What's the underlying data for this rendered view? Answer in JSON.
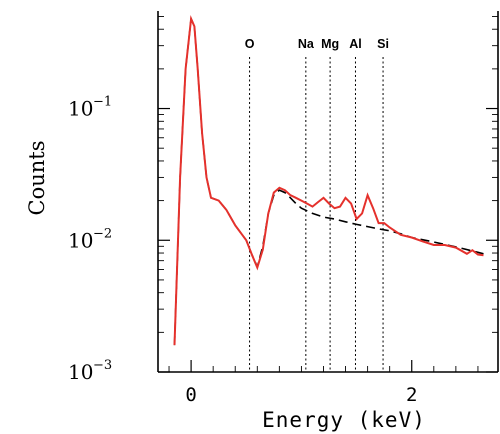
{
  "chart_data": {
    "type": "line",
    "title": "",
    "xlabel": "Energy (keV)",
    "ylabel": "Counts",
    "yscale": "log",
    "xlim": [
      -0.3,
      2.8
    ],
    "ylim": [
      0.001,
      0.55
    ],
    "x_ticks": [
      {
        "value": 0,
        "label": "0"
      },
      {
        "value": 2,
        "label": "2"
      }
    ],
    "y_ticks": [
      {
        "value": 0.001,
        "base": "10",
        "exp": "−3"
      },
      {
        "value": 0.01,
        "base": "10",
        "exp": "−2"
      },
      {
        "value": 0.1,
        "base": "10",
        "exp": "−1"
      }
    ],
    "element_lines": [
      {
        "label": "O",
        "energy": 0.53
      },
      {
        "label": "Na",
        "energy": 1.04
      },
      {
        "label": "Mg",
        "energy": 1.26
      },
      {
        "label": "Al",
        "energy": 1.49
      },
      {
        "label": "Si",
        "energy": 1.74
      }
    ],
    "series": [
      {
        "color": "#e5312c",
        "style": "solid",
        "x": [
          -0.15,
          -0.1,
          -0.05,
          0.0,
          0.03,
          0.06,
          0.1,
          0.14,
          0.18,
          0.25,
          0.32,
          0.4,
          0.5,
          0.55,
          0.6,
          0.65,
          0.7,
          0.75,
          0.8,
          0.85,
          0.9,
          0.95,
          1.0,
          1.05,
          1.1,
          1.15,
          1.2,
          1.25,
          1.3,
          1.35,
          1.4,
          1.45,
          1.5,
          1.55,
          1.6,
          1.65,
          1.7,
          1.75,
          1.8,
          1.9,
          2.0,
          2.1,
          2.2,
          2.3,
          2.4,
          2.5,
          2.55,
          2.6,
          2.65
        ],
        "y": [
          0.0016,
          0.03,
          0.2,
          0.48,
          0.42,
          0.2,
          0.065,
          0.03,
          0.021,
          0.02,
          0.017,
          0.013,
          0.01,
          0.0078,
          0.0062,
          0.0085,
          0.016,
          0.023,
          0.025,
          0.024,
          0.022,
          0.021,
          0.02,
          0.019,
          0.018,
          0.0195,
          0.021,
          0.019,
          0.0175,
          0.018,
          0.021,
          0.019,
          0.0145,
          0.016,
          0.022,
          0.0175,
          0.0135,
          0.0135,
          0.0125,
          0.011,
          0.0105,
          0.0098,
          0.0092,
          0.0092,
          0.0088,
          0.0079,
          0.0084,
          0.0078,
          0.0077
        ]
      },
      {
        "color": "#000000",
        "style": "dashed",
        "x": [
          -0.15,
          -0.1,
          -0.05,
          0.0,
          0.03,
          0.06,
          0.1,
          0.14,
          0.18,
          0.25,
          0.32,
          0.4,
          0.5,
          0.55,
          0.6,
          0.65,
          0.7,
          0.75,
          0.8,
          0.85,
          0.9,
          0.95,
          1.0,
          1.1,
          1.2,
          1.3,
          1.4,
          1.5,
          1.6,
          1.7,
          1.8,
          1.9,
          2.0,
          2.2,
          2.4,
          2.6,
          2.65
        ],
        "y": [
          0.0016,
          0.03,
          0.2,
          0.48,
          0.42,
          0.2,
          0.065,
          0.03,
          0.021,
          0.02,
          0.017,
          0.013,
          0.01,
          0.0078,
          0.0063,
          0.009,
          0.016,
          0.022,
          0.024,
          0.023,
          0.021,
          0.019,
          0.0175,
          0.016,
          0.015,
          0.0145,
          0.0138,
          0.0132,
          0.0127,
          0.0122,
          0.0118,
          0.0112,
          0.0105,
          0.0097,
          0.0089,
          0.0081,
          0.0079
        ]
      }
    ]
  }
}
